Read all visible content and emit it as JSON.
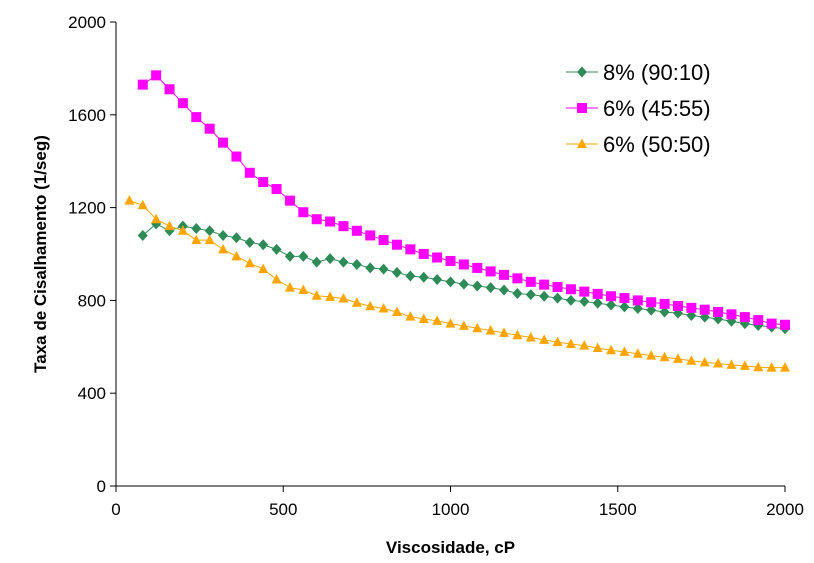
{
  "chart_data": {
    "type": "line",
    "title": "",
    "xlabel": "Viscosidade, cP",
    "ylabel": "Taxa de Cisalhamento (1/seg)",
    "xlim": [
      0,
      2000
    ],
    "ylim": [
      0,
      2000
    ],
    "x_ticks": [
      0,
      500,
      1000,
      1500,
      2000
    ],
    "y_ticks": [
      0,
      400,
      800,
      1200,
      1600,
      2000
    ],
    "grid": false,
    "legend_position": "top-right",
    "series": [
      {
        "name": "8% (90:10)",
        "color": "#2e8b57",
        "marker": "diamond",
        "x": [
          80,
          120,
          160,
          200,
          240,
          280,
          320,
          360,
          400,
          440,
          480,
          520,
          560,
          600,
          640,
          680,
          720,
          760,
          800,
          840,
          880,
          920,
          960,
          1000,
          1040,
          1080,
          1120,
          1160,
          1200,
          1240,
          1280,
          1320,
          1360,
          1400,
          1440,
          1480,
          1520,
          1560,
          1600,
          1640,
          1680,
          1720,
          1760,
          1800,
          1840,
          1880,
          1920,
          1960,
          2000
        ],
        "y": [
          1080,
          1130,
          1100,
          1120,
          1110,
          1100,
          1080,
          1070,
          1050,
          1040,
          1020,
          990,
          990,
          965,
          980,
          965,
          955,
          940,
          935,
          920,
          905,
          900,
          890,
          880,
          870,
          862,
          855,
          845,
          830,
          825,
          818,
          810,
          800,
          795,
          788,
          780,
          772,
          765,
          758,
          750,
          745,
          735,
          728,
          720,
          710,
          700,
          692,
          685,
          678
        ]
      },
      {
        "name": "6% (45:55)",
        "color": "#ff00ff",
        "marker": "square",
        "x": [
          80,
          120,
          160,
          200,
          240,
          280,
          320,
          360,
          400,
          440,
          480,
          520,
          560,
          600,
          640,
          680,
          720,
          760,
          800,
          840,
          880,
          920,
          960,
          1000,
          1040,
          1080,
          1120,
          1160,
          1200,
          1240,
          1280,
          1320,
          1360,
          1400,
          1440,
          1480,
          1520,
          1560,
          1600,
          1640,
          1680,
          1720,
          1760,
          1800,
          1840,
          1880,
          1920,
          1960,
          2000
        ],
        "y": [
          1730,
          1770,
          1710,
          1650,
          1590,
          1540,
          1480,
          1420,
          1350,
          1310,
          1280,
          1230,
          1180,
          1150,
          1140,
          1120,
          1100,
          1080,
          1060,
          1040,
          1020,
          1000,
          985,
          970,
          955,
          940,
          925,
          910,
          895,
          880,
          868,
          858,
          848,
          838,
          828,
          818,
          810,
          800,
          792,
          785,
          776,
          768,
          760,
          750,
          740,
          728,
          715,
          700,
          695
        ]
      },
      {
        "name": "6% (50:50)",
        "color": "#ffa500",
        "marker": "triangle",
        "x": [
          40,
          80,
          120,
          160,
          200,
          240,
          280,
          320,
          360,
          400,
          440,
          480,
          520,
          560,
          600,
          640,
          680,
          720,
          760,
          800,
          840,
          880,
          920,
          960,
          1000,
          1040,
          1080,
          1120,
          1160,
          1200,
          1240,
          1280,
          1320,
          1360,
          1400,
          1440,
          1480,
          1520,
          1560,
          1600,
          1640,
          1680,
          1720,
          1760,
          1800,
          1840,
          1880,
          1920,
          1960,
          2000
        ],
        "y": [
          1230,
          1210,
          1150,
          1120,
          1100,
          1060,
          1060,
          1020,
          990,
          960,
          935,
          890,
          855,
          845,
          820,
          815,
          808,
          790,
          775,
          765,
          750,
          730,
          720,
          712,
          700,
          690,
          680,
          670,
          660,
          650,
          640,
          630,
          620,
          612,
          605,
          595,
          585,
          578,
          570,
          562,
          555,
          548,
          540,
          533,
          528,
          522,
          518,
          512,
          510,
          510
        ]
      }
    ]
  }
}
